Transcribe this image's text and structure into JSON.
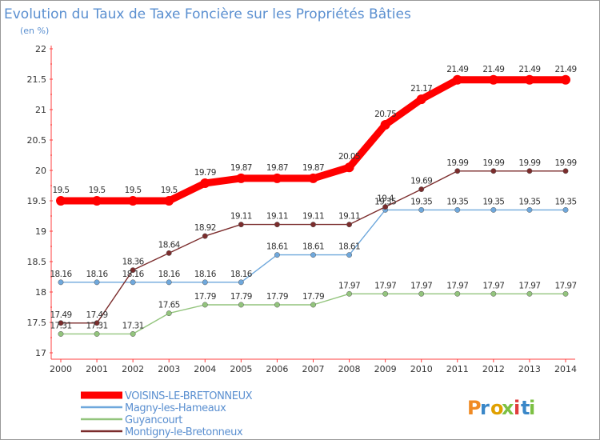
{
  "chart_data": {
    "type": "line",
    "title": "Evolution du Taux de Taxe Foncière sur les Propriétés Bâties",
    "subtitle": "(en %)",
    "xlabel": "",
    "ylabel": "",
    "x": [
      2000,
      2001,
      2002,
      2003,
      2004,
      2005,
      2006,
      2007,
      2008,
      2009,
      2010,
      2011,
      2012,
      2013,
      2014
    ],
    "ylim": [
      17,
      22
    ],
    "yticks": [
      17,
      17.5,
      18,
      18.5,
      19,
      19.5,
      20,
      20.5,
      21,
      21.5,
      22
    ],
    "grid": false,
    "legend_position": "bottom-left",
    "series": [
      {
        "name": "VOISINS-LE-BRETONNEUX",
        "color": "#ff0000",
        "values": [
          19.5,
          19.5,
          19.5,
          19.5,
          19.79,
          19.87,
          19.87,
          19.87,
          20.05,
          20.75,
          21.17,
          21.49,
          21.49,
          21.49,
          21.49
        ],
        "labels": [
          "19.5",
          "19.5",
          "19.5",
          "19.5",
          "19.79",
          "19.87",
          "19.87",
          "19.87",
          "20.05",
          "20.75",
          "21.17",
          "21.49",
          "21.49",
          "21.49",
          "21.49"
        ]
      },
      {
        "name": "Magny-les-Hameaux",
        "color": "#6fa8dc",
        "values": [
          18.16,
          18.16,
          18.16,
          18.16,
          18.16,
          18.16,
          18.61,
          18.61,
          18.61,
          19.35,
          19.35,
          19.35,
          19.35,
          19.35,
          19.35
        ],
        "labels": [
          "18.16",
          "18.16",
          "18.16",
          "18.16",
          "18.16",
          "18.16",
          "18.61",
          "18.61",
          "18.61",
          "19.35",
          "19.35",
          "19.35",
          "19.35",
          "19.35",
          "19.35"
        ]
      },
      {
        "name": "Guyancourt",
        "color": "#93c47d",
        "values": [
          17.31,
          17.31,
          17.31,
          17.65,
          17.79,
          17.79,
          17.79,
          17.79,
          17.97,
          17.97,
          17.97,
          17.97,
          17.97,
          17.97,
          17.97
        ],
        "labels": [
          "17.31",
          "17.31",
          "17.31",
          "17.65",
          "17.79",
          "17.79",
          "17.79",
          "17.79",
          "17.97",
          "17.97",
          "17.97",
          "17.97",
          "17.97",
          "17.97",
          "17.97"
        ]
      },
      {
        "name": "Montigny-le-Bretonneux",
        "color": "#7b2c2c",
        "values": [
          17.49,
          17.49,
          18.36,
          18.64,
          18.92,
          19.11,
          19.11,
          19.11,
          19.11,
          19.4,
          19.69,
          19.99,
          19.99,
          19.99,
          19.99
        ],
        "labels": [
          "17.49",
          "17.49",
          "18.36",
          "18.64",
          "18.92",
          "19.11",
          "19.11",
          "19.11",
          "19.11",
          "19.4",
          "19.69",
          "19.99",
          "19.99",
          "19.99",
          "19.99"
        ]
      }
    ]
  },
  "logo": {
    "text": "Proxiti",
    "colors": [
      "#f08a24",
      "#3a87c8",
      "#e0a000",
      "#7cc043",
      "#e03c3c",
      "#3a87c8",
      "#7cc043"
    ]
  }
}
